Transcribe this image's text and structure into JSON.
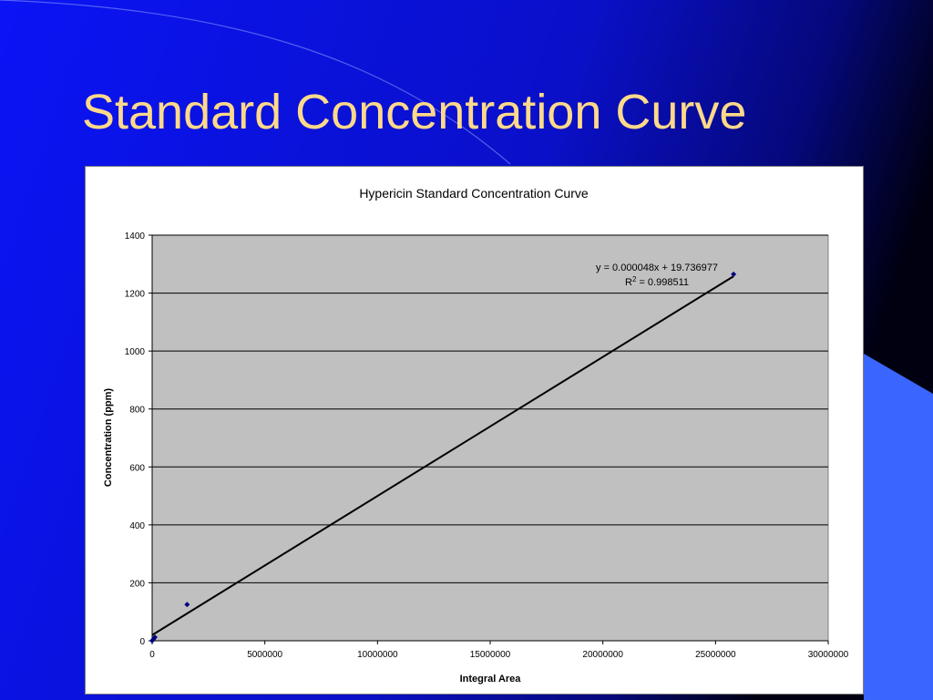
{
  "slide": {
    "title": "Standard Concentration Curve",
    "title_color": "#ffd98a",
    "background_color": "#0a14f0"
  },
  "chart_data": {
    "type": "scatter",
    "title": "Hypericin Standard Concentration Curve",
    "xlabel": "Integral Area",
    "ylabel": "Concentration (ppm)",
    "xlim": [
      0,
      30000000
    ],
    "ylim": [
      0,
      1400
    ],
    "x_ticks": [
      0,
      5000000,
      10000000,
      15000000,
      20000000,
      25000000,
      30000000
    ],
    "y_ticks": [
      0,
      200,
      400,
      600,
      800,
      1000,
      1200,
      1400
    ],
    "grid": true,
    "plot_background": "#c0c0c0",
    "marker_color": "#000080",
    "series": [
      {
        "x": [
          0,
          50000,
          120000,
          1550000,
          25800000
        ],
        "y": [
          0,
          5,
          12,
          125,
          1265
        ]
      }
    ],
    "trendline": {
      "slope": 4.8e-05,
      "intercept": 19.736977,
      "x_range": [
        0,
        25800000
      ],
      "equation_text": "y = 0.000048x + 19.736977",
      "r2_prefix": "R",
      "r2_sup": "2",
      "r2_value_text": " = 0.998511"
    }
  }
}
